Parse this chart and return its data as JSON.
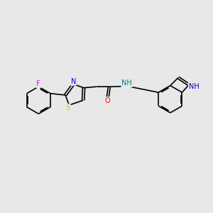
{
  "bg_color": "#e8e8e8",
  "bond_color": "#000000",
  "atom_colors": {
    "N": "#0000ff",
    "S": "#cccc00",
    "O": "#ff0000",
    "F": "#ff00ff",
    "NH_indole": "#0000cd",
    "NH_amide": "#008080"
  },
  "font_size": 7.0,
  "line_width": 1.2
}
